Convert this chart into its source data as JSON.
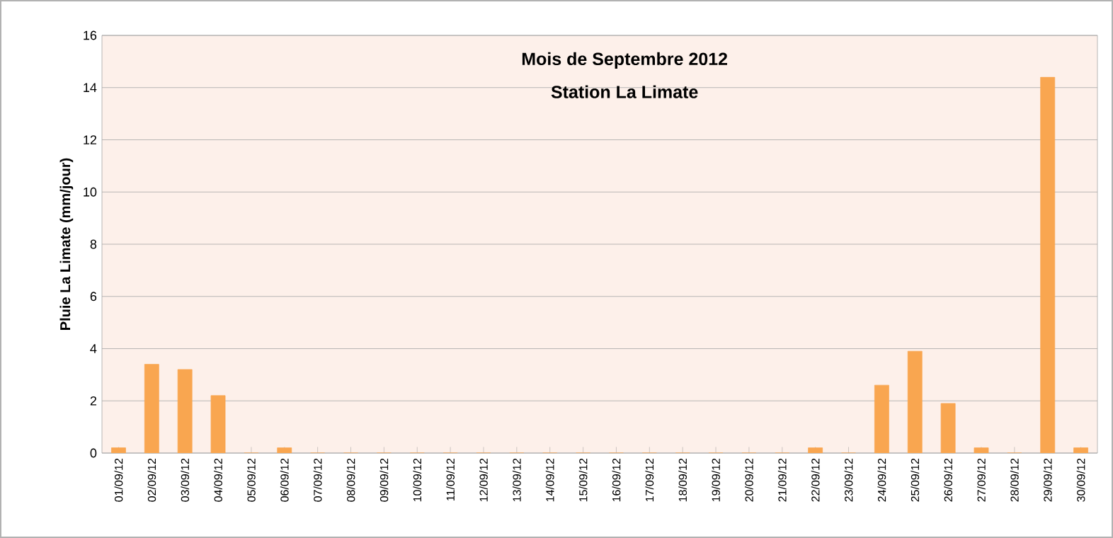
{
  "chart_data": {
    "type": "bar",
    "title": "Mois de Septembre 2012",
    "subtitle": "Station La Limate",
    "ylabel": "Pluie La Limate (mm/jour)",
    "categories": [
      "01/09/12",
      "02/09/12",
      "03/09/12",
      "04/09/12",
      "05/09/12",
      "06/09/12",
      "07/09/12",
      "08/09/12",
      "09/09/12",
      "10/09/12",
      "11/09/12",
      "12/09/12",
      "13/09/12",
      "14/09/12",
      "15/09/12",
      "16/09/12",
      "17/09/12",
      "18/09/12",
      "19/09/12",
      "20/09/12",
      "21/09/12",
      "22/09/12",
      "23/09/12",
      "24/09/12",
      "25/09/12",
      "26/09/12",
      "27/09/12",
      "28/09/12",
      "29/09/12",
      "30/09/12"
    ],
    "values": [
      0.2,
      3.4,
      3.2,
      2.2,
      0,
      0.2,
      0,
      0,
      0,
      0,
      0,
      0,
      0,
      0,
      0,
      0,
      0,
      0,
      0,
      0,
      0,
      0.2,
      0,
      2.6,
      3.9,
      1.9,
      0.2,
      0,
      14.4,
      0.2
    ],
    "color": "#f9a650",
    "ylim": [
      0,
      16
    ],
    "yticks": [
      0,
      2,
      4,
      6,
      8,
      10,
      12,
      14,
      16
    ],
    "grid": "y"
  }
}
